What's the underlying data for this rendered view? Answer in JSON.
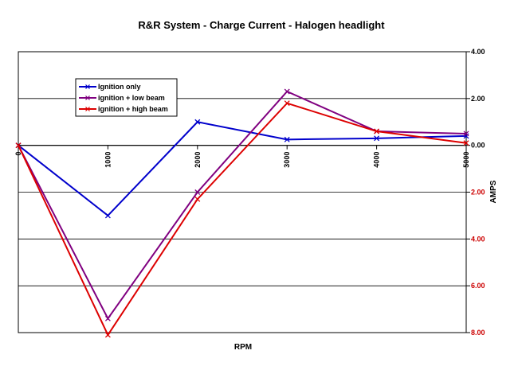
{
  "chart_data": {
    "type": "line",
    "title": "R&R System - Charge Current - Halogen headlight",
    "xlabel": "RPM",
    "ylabel": "AMPS",
    "x": [
      0,
      1000,
      2000,
      3000,
      4000,
      5000
    ],
    "x_tick_labels": [
      "0",
      "1000",
      "2000",
      "3000",
      "4000",
      "5000"
    ],
    "ylim": [
      -8,
      4
    ],
    "y_ticks": [
      4,
      2,
      0,
      -2,
      -4,
      -6,
      -8
    ],
    "y_tick_labels": [
      "4.00",
      "2.00",
      "0.00",
      "2.00",
      "4.00",
      "6.00",
      "8.00"
    ],
    "y_tick_colors": [
      "#000000",
      "#000000",
      "#000000",
      "#cc0000",
      "#cc0000",
      "#cc0000",
      "#cc0000"
    ],
    "grid": true,
    "legend_position": "top-left",
    "series": [
      {
        "name": "Ignition only",
        "color": "#0000cc",
        "marker": "x",
        "values": [
          0,
          -3.0,
          1.0,
          0.25,
          0.3,
          0.4
        ]
      },
      {
        "name": "ignition + low beam",
        "color": "#800080",
        "marker": "x",
        "values": [
          0,
          -7.4,
          -2.0,
          2.3,
          0.6,
          0.5
        ]
      },
      {
        "name": "ignition + high beam",
        "color": "#dd0000",
        "marker": "x",
        "values": [
          0,
          -8.1,
          -2.3,
          1.8,
          0.6,
          0.1
        ]
      }
    ]
  }
}
